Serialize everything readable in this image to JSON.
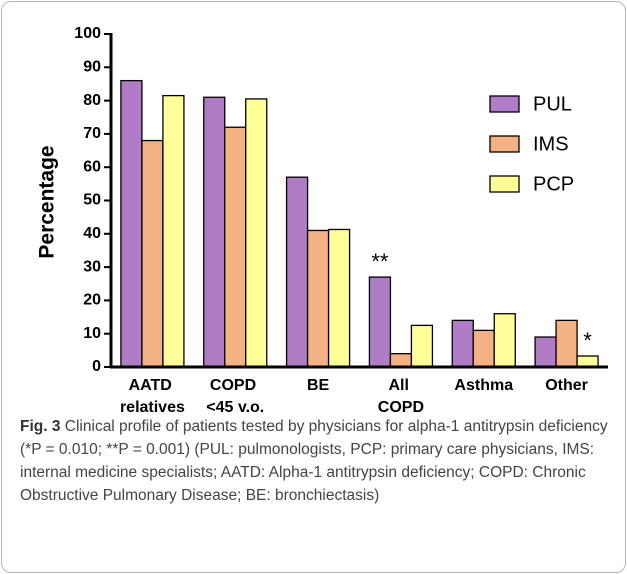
{
  "chart_data": {
    "type": "bar",
    "ylabel": "Percentage",
    "categories": [
      "AATD relatives",
      "COPD <45 y.o.",
      "BE",
      "All COPD",
      "Asthma",
      "Other"
    ],
    "series": [
      {
        "name": "PUL",
        "color": "#b07cc6",
        "values": [
          86,
          81,
          57,
          27,
          14,
          9
        ]
      },
      {
        "name": "IMS",
        "color": "#f4b183",
        "values": [
          68,
          72,
          41,
          4,
          11,
          14
        ]
      },
      {
        "name": "PCP",
        "color": "#ffff99",
        "values": [
          81.5,
          80.5,
          41.3,
          12.5,
          16,
          3.3
        ]
      }
    ],
    "ylim": [
      0,
      100
    ],
    "yticks": [
      0,
      10,
      20,
      30,
      40,
      50,
      60,
      70,
      80,
      90,
      100
    ],
    "legend": "upper right",
    "annotations": [
      {
        "text": "**",
        "category": "All COPD",
        "series": "PUL"
      },
      {
        "text": "*",
        "category": "Other",
        "series": "PCP"
      }
    ],
    "caption_label": "Fig. 3",
    "caption": "Clinical profile of patients tested by physicians for alpha-1 antitrypsin deficiency (*P = 0.010; **P = 0.001) (PUL: pulmonologists, PCP: primary care physicians, IMS: internal medicine specialists; AATD: Alpha-1 antitrypsin deficiency; COPD: Chronic Obstructive Pulmonary Disease; BE: bronchiectasis)"
  }
}
